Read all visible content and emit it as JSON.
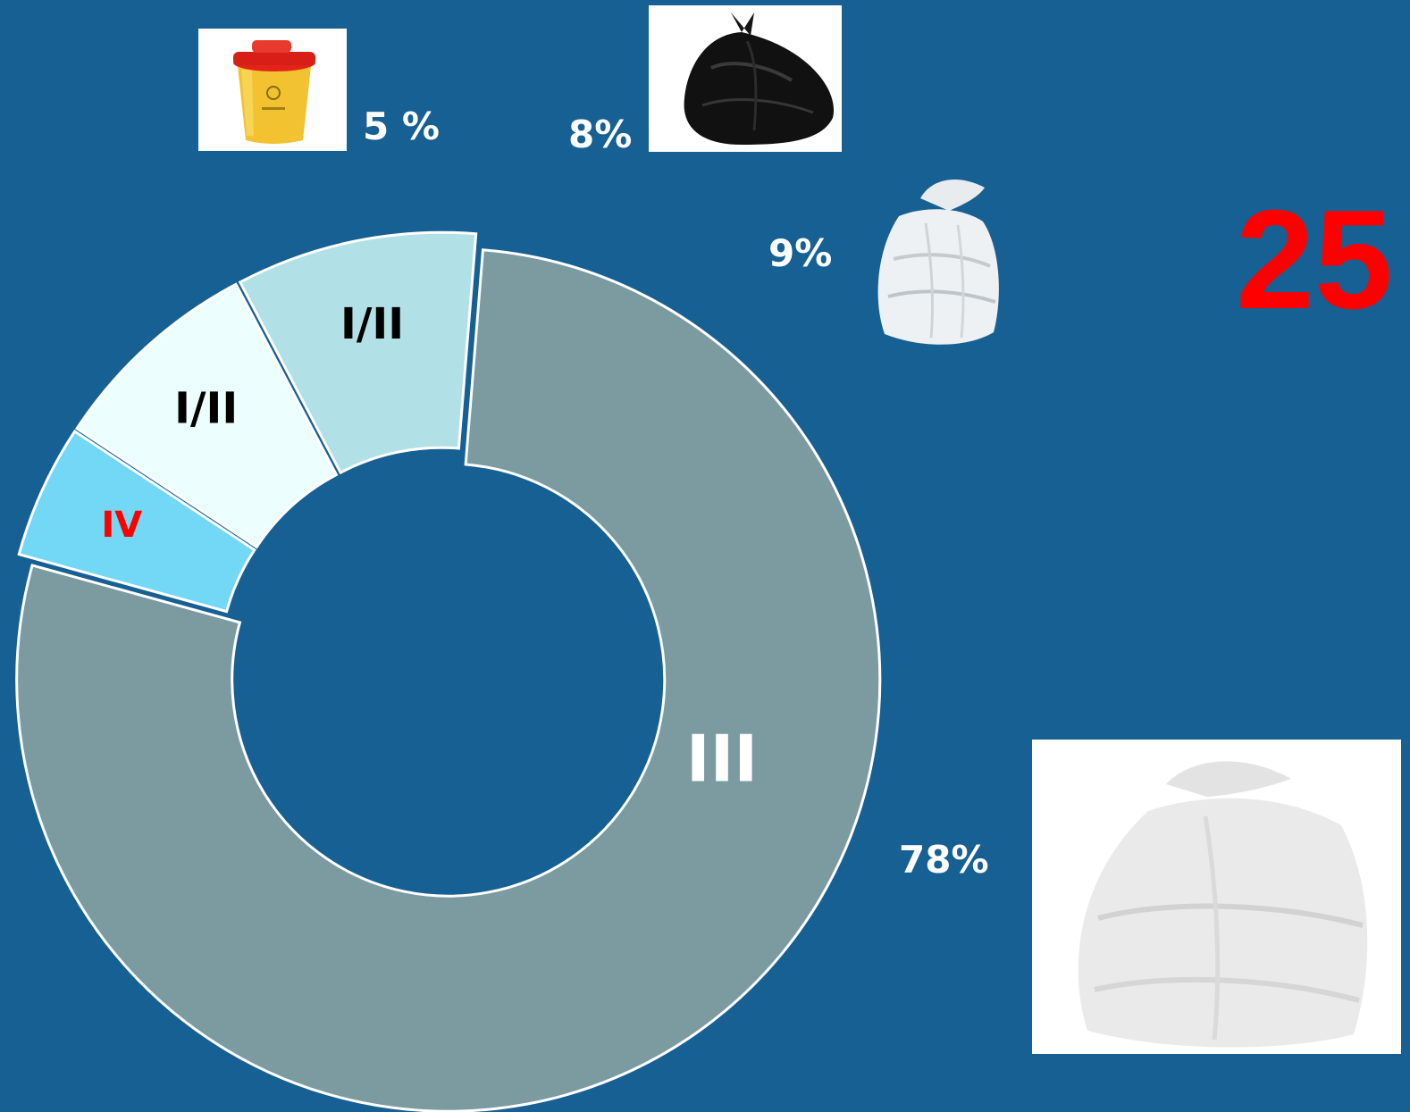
{
  "slide_number": "25",
  "colors": {
    "background": "#166093",
    "accent_red": "#ff0000",
    "segment_iv": "#72D8F5",
    "segment_i_ii_a": "#EDFEFF",
    "segment_i_ii_b": "#B1E0E6",
    "segment_iii": "#7B9BA1",
    "outline": "#ffffff"
  },
  "chart_data": {
    "type": "pie",
    "variant": "donut-exploded",
    "categories": [
      "IV",
      "I/II",
      "I/II",
      "III"
    ],
    "values": [
      5,
      8,
      9,
      78
    ],
    "segment_labels": [
      "IV",
      "I/II",
      "I/II",
      "III"
    ],
    "percent_labels": [
      "5 %",
      "8%",
      "9%",
      "78%"
    ],
    "segment_colors": [
      "#72D8F5",
      "#EDFEFF",
      "#B1E0E6",
      "#7B9BA1"
    ],
    "segment_label_colors": [
      "#ff0000",
      "#000000",
      "#000000",
      "#ffffff"
    ]
  },
  "images": [
    {
      "icon": "yellow-sharps-container-icon"
    },
    {
      "icon": "black-waste-bag-icon"
    },
    {
      "icon": "clear-waste-bag-icon"
    },
    {
      "icon": "white-waste-bag-icon"
    }
  ]
}
